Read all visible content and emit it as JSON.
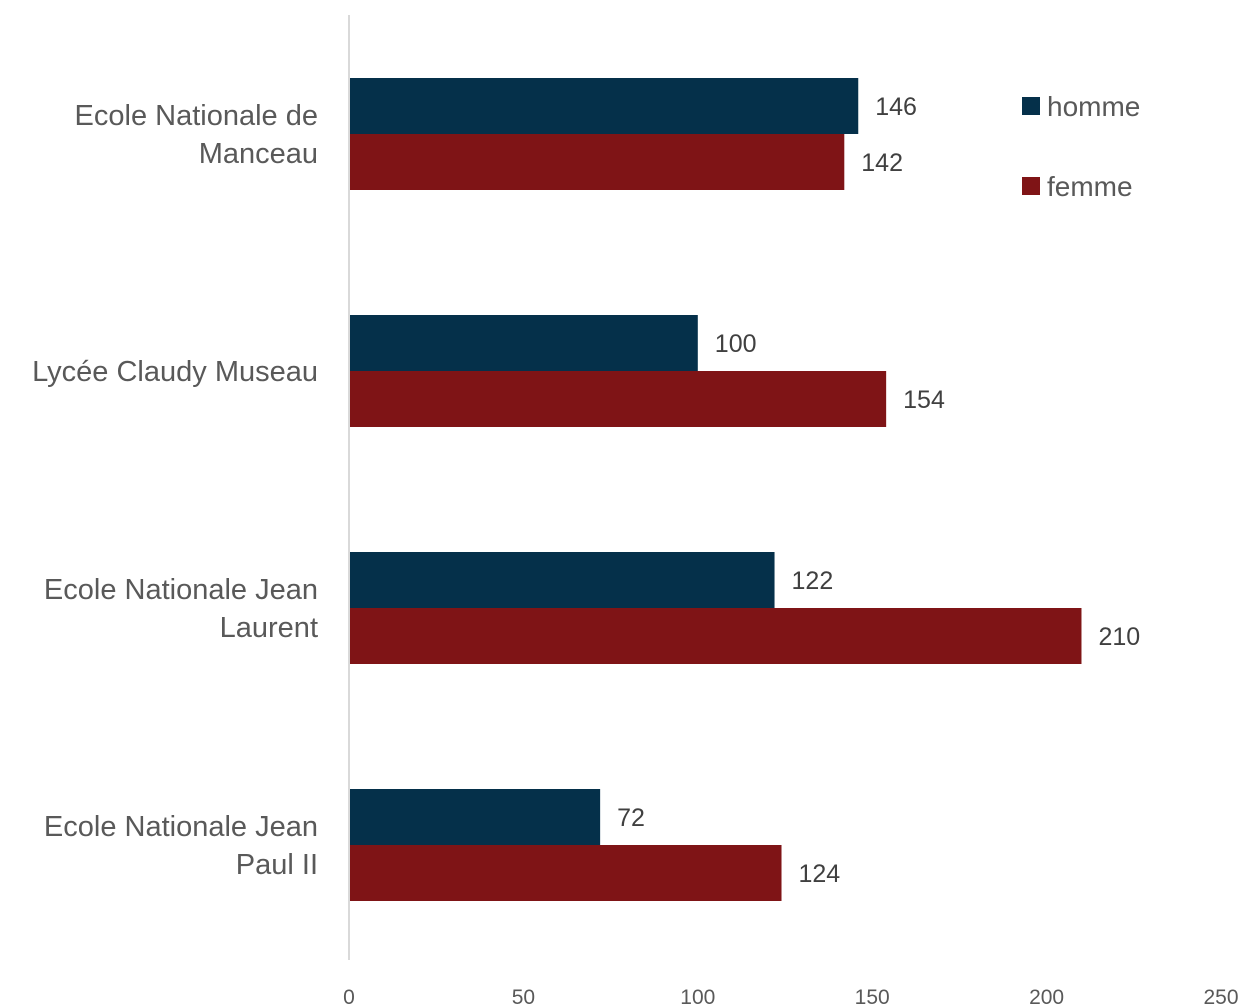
{
  "chart_data": {
    "type": "bar",
    "orientation": "horizontal",
    "categories": [
      [
        "Ecole Nationale de",
        "Manceau"
      ],
      [
        "Lycée Claudy Museau"
      ],
      [
        "Ecole Nationale Jean",
        "Laurent"
      ],
      [
        "Ecole Nationale Jean",
        "Paul II"
      ]
    ],
    "series": [
      {
        "name": "homme",
        "color": "#05304a",
        "values": [
          146,
          100,
          122,
          72
        ]
      },
      {
        "name": "femme",
        "color": "#7f1416",
        "values": [
          142,
          154,
          210,
          124
        ]
      }
    ],
    "xlim": [
      0,
      250
    ],
    "xticks": [
      0,
      50,
      100,
      150,
      200,
      250
    ],
    "title": "",
    "xlabel": "",
    "ylabel": "",
    "grid": false,
    "data_labels": true,
    "legend_position": "top-right",
    "axis_line_color": "#d9d9d9"
  }
}
